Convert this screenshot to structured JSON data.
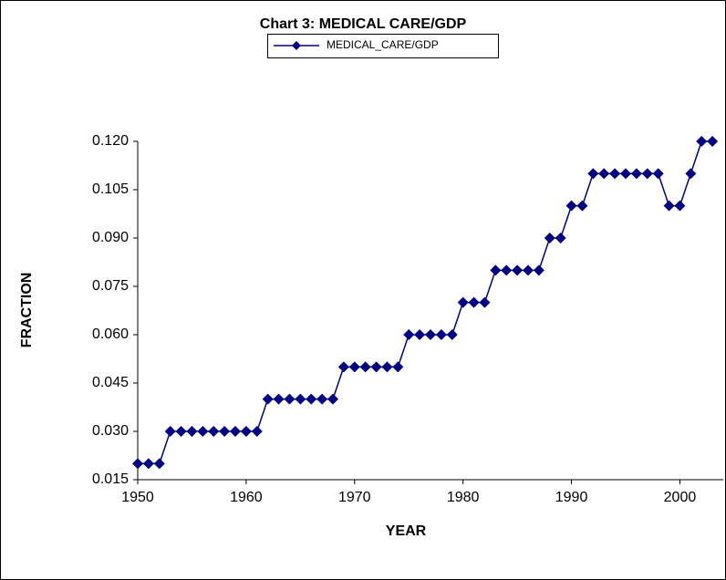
{
  "chart_data": {
    "type": "line",
    "title": "Chart 3:  MEDICAL CARE/GDP",
    "xlabel": "YEAR",
    "ylabel": "FRACTION",
    "x": [
      1950,
      1951,
      1952,
      1953,
      1954,
      1955,
      1956,
      1957,
      1958,
      1959,
      1960,
      1961,
      1962,
      1963,
      1964,
      1965,
      1966,
      1967,
      1968,
      1969,
      1970,
      1971,
      1972,
      1973,
      1974,
      1975,
      1976,
      1977,
      1978,
      1979,
      1980,
      1981,
      1982,
      1983,
      1984,
      1985,
      1986,
      1987,
      1988,
      1989,
      1990,
      1991,
      1992,
      1993,
      1994,
      1995,
      1996,
      1997,
      1998,
      1999,
      2000,
      2001,
      2002,
      2003
    ],
    "series": [
      {
        "name": "MEDICAL_CARE/GDP",
        "color": "#000080",
        "values": [
          0.02,
          0.02,
          0.02,
          0.03,
          0.03,
          0.03,
          0.03,
          0.03,
          0.03,
          0.03,
          0.03,
          0.03,
          0.04,
          0.04,
          0.04,
          0.04,
          0.04,
          0.04,
          0.04,
          0.05,
          0.05,
          0.05,
          0.05,
          0.05,
          0.05,
          0.06,
          0.06,
          0.06,
          0.06,
          0.06,
          0.07,
          0.07,
          0.07,
          0.08,
          0.08,
          0.08,
          0.08,
          0.08,
          0.09,
          0.09,
          0.1,
          0.1,
          0.11,
          0.11,
          0.11,
          0.11,
          0.11,
          0.11,
          0.11,
          0.1,
          0.1,
          0.11,
          0.12,
          0.12
        ]
      }
    ],
    "xlim": [
      1950,
      2004
    ],
    "xticks": [
      1950,
      1960,
      1970,
      1980,
      1990,
      2000
    ],
    "ylim": [
      0.015,
      0.12
    ],
    "yticks": [
      {
        "value": 0.015,
        "label": "0.015"
      },
      {
        "value": 0.03,
        "label": "0.030"
      },
      {
        "value": 0.045,
        "label": "0.045"
      },
      {
        "value": 0.06,
        "label": "0.060"
      },
      {
        "value": 0.075,
        "label": "0.075"
      },
      {
        "value": 0.09,
        "label": "0.090"
      },
      {
        "value": 0.105,
        "label": "0.105"
      },
      {
        "value": 0.12,
        "label": "0.120"
      }
    ],
    "legend": "top"
  }
}
